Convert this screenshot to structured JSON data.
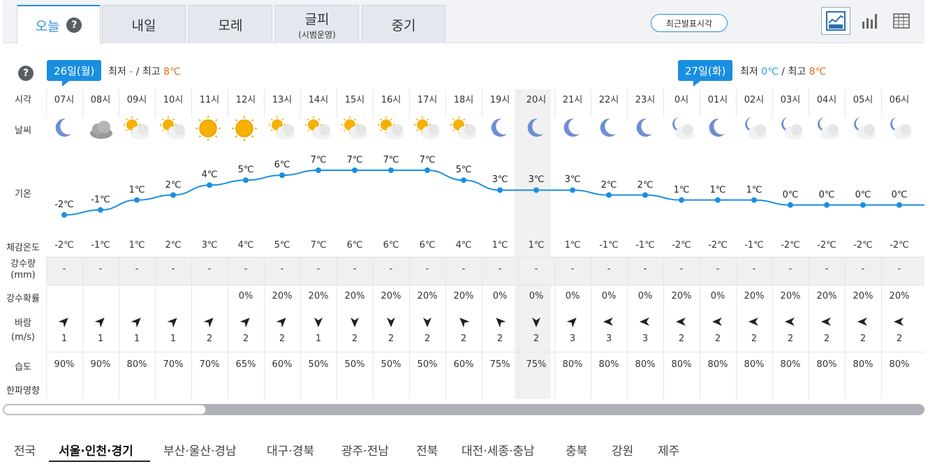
{
  "tabs": [
    {
      "label": "오늘",
      "sub": ""
    },
    {
      "label": "내일",
      "sub": ""
    },
    {
      "label": "모레",
      "sub": ""
    },
    {
      "label": "글피",
      "sub": "(시범운영)"
    },
    {
      "label": "중기",
      "sub": ""
    }
  ],
  "help_glyph": "?",
  "latest_button": "최근발표시각",
  "view_icons": [
    "line-chart-icon",
    "bar-chart-icon",
    "table-icon"
  ],
  "day1": {
    "badge": "26일(월)",
    "min_label": "최저",
    "min": "-",
    "max_label": "최고",
    "max": "8℃"
  },
  "day2": {
    "badge": "27일(화)",
    "min_label": "최저",
    "min": "0℃",
    "max_label": "최고",
    "max": "8℃"
  },
  "row_labels": {
    "time": "시각",
    "weather": "날씨",
    "temp": "기온",
    "feels": "체감온도",
    "precip": "강수량",
    "precip_unit": "(mm)",
    "prob": "강수확률",
    "wind": "바람",
    "wind_unit": "(m/s)",
    "humidity": "습도",
    "cold": "한파영향"
  },
  "colors": {
    "accent": "#1a8ee0",
    "line": "#1a8ee0",
    "min_temp": "#29a0e0",
    "max_temp": "#e07020"
  },
  "hours": [
    {
      "time": "07시",
      "icon": "moon",
      "temp": -2,
      "temp_label": "-2℃",
      "feels": "-2℃",
      "precip": "-",
      "prob": "",
      "wind_dir": "sw",
      "wind": "1",
      "hum": "90%"
    },
    {
      "time": "08시",
      "icon": "cloudy",
      "temp": -1,
      "temp_label": "-1℃",
      "feels": "-1℃",
      "precip": "-",
      "prob": "",
      "wind_dir": "sw",
      "wind": "1",
      "hum": "90%"
    },
    {
      "time": "09시",
      "icon": "sun-cloud",
      "temp": 1,
      "temp_label": "1℃",
      "feels": "1℃",
      "precip": "-",
      "prob": "",
      "wind_dir": "sw",
      "wind": "1",
      "hum": "80%"
    },
    {
      "time": "10시",
      "icon": "sun-cloud",
      "temp": 2,
      "temp_label": "2℃",
      "feels": "2℃",
      "precip": "-",
      "prob": "",
      "wind_dir": "sw",
      "wind": "1",
      "hum": "70%"
    },
    {
      "time": "11시",
      "icon": "sun",
      "temp": 4,
      "temp_label": "4℃",
      "feels": "3℃",
      "precip": "-",
      "prob": "",
      "wind_dir": "sw",
      "wind": "2",
      "hum": "70%"
    },
    {
      "time": "12시",
      "icon": "sun",
      "temp": 5,
      "temp_label": "5℃",
      "feels": "4℃",
      "precip": "-",
      "prob": "0%",
      "wind_dir": "sw",
      "wind": "2",
      "hum": "65%"
    },
    {
      "time": "13시",
      "icon": "sun-cloud",
      "temp": 6,
      "temp_label": "6℃",
      "feels": "5℃",
      "precip": "-",
      "prob": "20%",
      "wind_dir": "sw",
      "wind": "2",
      "hum": "60%"
    },
    {
      "time": "14시",
      "icon": "sun-cloud",
      "temp": 7,
      "temp_label": "7℃",
      "feels": "7℃",
      "precip": "-",
      "prob": "20%",
      "wind_dir": "n",
      "wind": "1",
      "hum": "50%"
    },
    {
      "time": "15시",
      "icon": "sun-cloud",
      "temp": 7,
      "temp_label": "7℃",
      "feels": "6℃",
      "precip": "-",
      "prob": "20%",
      "wind_dir": "n",
      "wind": "2",
      "hum": "50%"
    },
    {
      "time": "16시",
      "icon": "sun-cloud",
      "temp": 7,
      "temp_label": "7℃",
      "feels": "6℃",
      "precip": "-",
      "prob": "20%",
      "wind_dir": "n",
      "wind": "2",
      "hum": "50%"
    },
    {
      "time": "17시",
      "icon": "sun-cloud",
      "temp": 7,
      "temp_label": "7℃",
      "feels": "6℃",
      "precip": "-",
      "prob": "20%",
      "wind_dir": "n",
      "wind": "2",
      "hum": "50%"
    },
    {
      "time": "18시",
      "icon": "sun-cloud",
      "temp": 5,
      "temp_label": "5℃",
      "feels": "4℃",
      "precip": "-",
      "prob": "20%",
      "wind_dir": "se",
      "wind": "2",
      "hum": "60%"
    },
    {
      "time": "19시",
      "icon": "moon",
      "temp": 3,
      "temp_label": "3℃",
      "feels": "1℃",
      "precip": "-",
      "prob": "0%",
      "wind_dir": "se",
      "wind": "2",
      "hum": "75%"
    },
    {
      "time": "20시",
      "icon": "moon",
      "temp": 3,
      "temp_label": "3℃",
      "feels": "1℃",
      "precip": "-",
      "prob": "0%",
      "wind_dir": "n",
      "wind": "2",
      "hum": "75%"
    },
    {
      "time": "21시",
      "icon": "moon",
      "temp": 3,
      "temp_label": "3℃",
      "feels": "1℃",
      "precip": "-",
      "prob": "0%",
      "wind_dir": "sw",
      "wind": "3",
      "hum": "80%"
    },
    {
      "time": "22시",
      "icon": "moon",
      "temp": 2,
      "temp_label": "2℃",
      "feels": "-1℃",
      "precip": "-",
      "prob": "0%",
      "wind_dir": "e",
      "wind": "3",
      "hum": "80%"
    },
    {
      "time": "23시",
      "icon": "moon",
      "temp": 2,
      "temp_label": "2℃",
      "feels": "-1℃",
      "precip": "-",
      "prob": "0%",
      "wind_dir": "e",
      "wind": "3",
      "hum": "80%"
    },
    {
      "time": "0시",
      "icon": "moon-cloud",
      "temp": 1,
      "temp_label": "1℃",
      "feels": "-2℃",
      "precip": "-",
      "prob": "20%",
      "wind_dir": "e",
      "wind": "2",
      "hum": "80%"
    },
    {
      "time": "01시",
      "icon": "moon",
      "temp": 1,
      "temp_label": "1℃",
      "feels": "-2℃",
      "precip": "-",
      "prob": "0%",
      "wind_dir": "e",
      "wind": "2",
      "hum": "80%"
    },
    {
      "time": "02시",
      "icon": "moon-cloud",
      "temp": 1,
      "temp_label": "1℃",
      "feels": "-1℃",
      "precip": "-",
      "prob": "20%",
      "wind_dir": "e",
      "wind": "2",
      "hum": "80%"
    },
    {
      "time": "03시",
      "icon": "moon-cloud",
      "temp": 0,
      "temp_label": "0℃",
      "feels": "-2℃",
      "precip": "-",
      "prob": "20%",
      "wind_dir": "e",
      "wind": "2",
      "hum": "80%"
    },
    {
      "time": "04시",
      "icon": "moon-cloud",
      "temp": 0,
      "temp_label": "0℃",
      "feels": "-2℃",
      "precip": "-",
      "prob": "20%",
      "wind_dir": "e",
      "wind": "2",
      "hum": "80%"
    },
    {
      "time": "05시",
      "icon": "moon-cloud",
      "temp": 0,
      "temp_label": "0℃",
      "feels": "-2℃",
      "precip": "-",
      "prob": "20%",
      "wind_dir": "e",
      "wind": "2",
      "hum": "80%"
    },
    {
      "time": "06시",
      "icon": "moon-cloud",
      "temp": 0,
      "temp_label": "0℃",
      "feels": "-2℃",
      "precip": "-",
      "prob": "20%",
      "wind_dir": "e",
      "wind": "2",
      "hum": "80%"
    }
  ],
  "regions": [
    "전국",
    "서울·인천·경기",
    "부산·울산·경남",
    "대구·경북",
    "광주·전남",
    "전북",
    "대전·세종·충남",
    "충북",
    "강원",
    "제주"
  ],
  "active_region": 1
}
